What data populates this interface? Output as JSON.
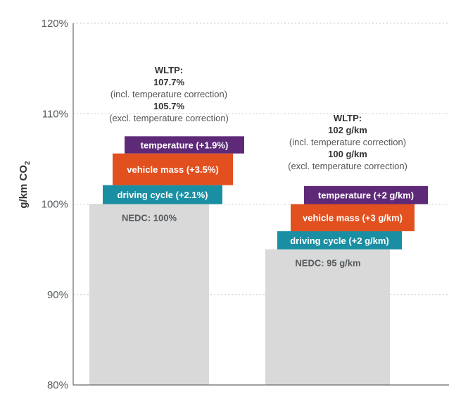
{
  "colors": {
    "base": "#d9d9d9",
    "driving_cycle": "#1a8fa3",
    "vehicle_mass": "#e2501f",
    "temperature": "#5e2a78",
    "grid": "#c8c8c8",
    "axis": "#6b6b6b"
  },
  "chart_data": {
    "type": "bar",
    "title": "",
    "ylabel_main": "g/km CO",
    "ylabel_sub": "2",
    "ylim": [
      80,
      120
    ],
    "yticks": [
      80,
      90,
      100,
      110,
      120
    ],
    "ytick_labels": [
      "80%",
      "90%",
      "100%",
      "110%",
      "120%"
    ],
    "grid": true,
    "groups": [
      {
        "name": "left",
        "base": {
          "value": 100,
          "label": "NEDC: 100%"
        },
        "steps": [
          {
            "name": "driving_cycle",
            "delta": 2.1,
            "label": "driving cycle (+2.1%)"
          },
          {
            "name": "vehicle_mass",
            "delta": 3.5,
            "label": "vehicle mass (+3.5%)"
          },
          {
            "name": "temperature",
            "delta": 1.9,
            "label": "temperature (+1.9%)"
          }
        ],
        "annotation": {
          "title": "WLTP:",
          "incl_value": "107.7%",
          "incl_note": "(incl. temperature correction)",
          "excl_value": "105.7%",
          "excl_note": "(excl. temperature correction)"
        }
      },
      {
        "name": "right",
        "base": {
          "value": 95,
          "label": "NEDC: 95 g/km"
        },
        "steps": [
          {
            "name": "driving_cycle",
            "delta": 2,
            "label": "driving cycle (+2 g/km)"
          },
          {
            "name": "vehicle_mass",
            "delta": 3,
            "label": "vehicle mass (+3 g/km)"
          },
          {
            "name": "temperature",
            "delta": 2,
            "label": "temperature (+2 g/km)"
          }
        ],
        "annotation": {
          "title": "WLTP:",
          "incl_value": "102 g/km",
          "incl_note": "(incl. temperature correction)",
          "excl_value": "100 g/km",
          "excl_note": "(excl. temperature correction)"
        }
      }
    ]
  }
}
